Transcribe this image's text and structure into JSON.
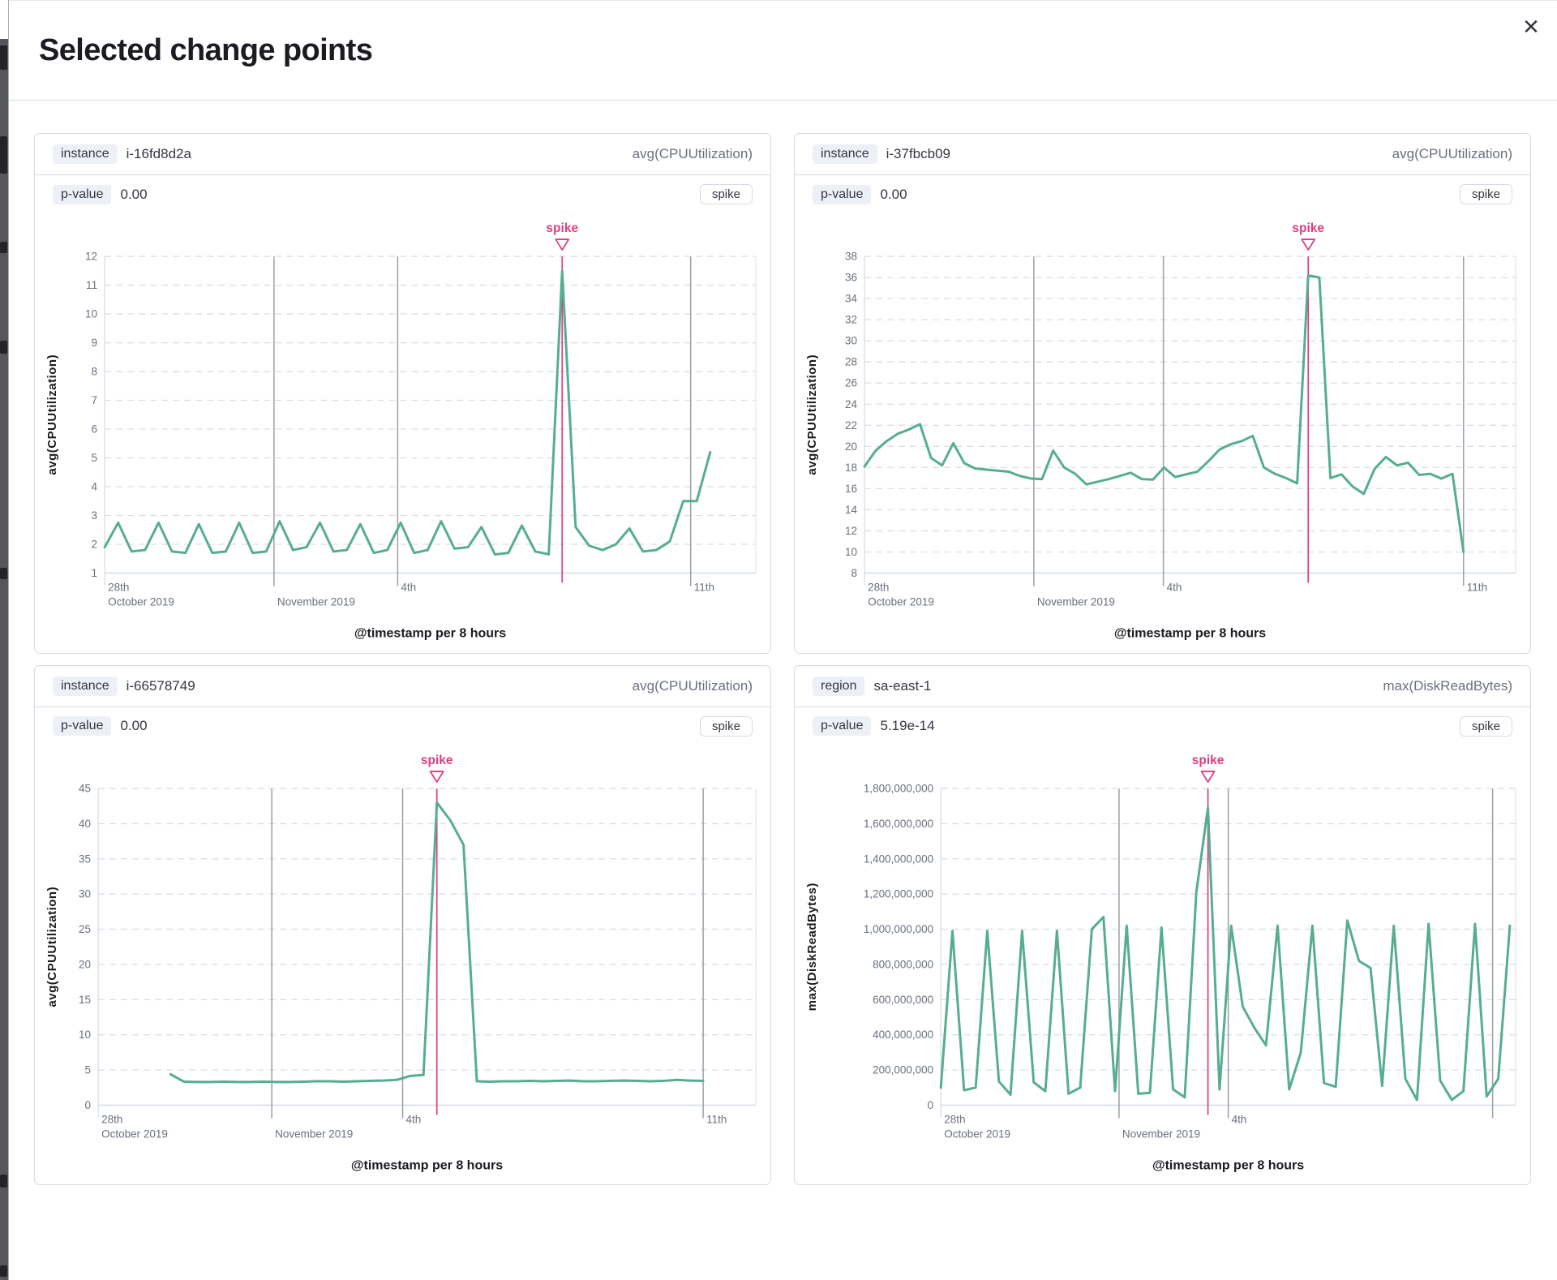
{
  "modal": {
    "title": "Selected change points",
    "close_icon": "✕"
  },
  "cards": [
    {
      "field_label": "instance",
      "field_value": "i-16fd8d2a",
      "metric": "avg(CPUUtilization)",
      "p_label": "p-value",
      "p_value": "0.00",
      "change_type": "spike"
    },
    {
      "field_label": "instance",
      "field_value": "i-37fbcb09",
      "metric": "avg(CPUUtilization)",
      "p_label": "p-value",
      "p_value": "0.00",
      "change_type": "spike"
    },
    {
      "field_label": "instance",
      "field_value": "i-66578749",
      "metric": "avg(CPUUtilization)",
      "p_label": "p-value",
      "p_value": "0.00",
      "change_type": "spike"
    },
    {
      "field_label": "region",
      "field_value": "sa-east-1",
      "metric": "max(DiskReadBytes)",
      "p_label": "p-value",
      "p_value": "5.19e-14",
      "change_type": "spike"
    }
  ],
  "colors": {
    "series_line": "#57ad92",
    "annotation": "#dc3d82",
    "grid_dashed": "#d9dee8",
    "grid_dark": "#9aa0a6",
    "axis": "#d3dae6",
    "tick_label": "#69707d",
    "axis_title": "#1a1c21"
  },
  "chart_data": [
    {
      "type": "line",
      "ylabel": "avg(CPUUtilization)",
      "xlabel": "@timestamp per 8 hours",
      "annotation_label": "spike",
      "ylim": [
        1,
        12
      ],
      "ytick_step": 1,
      "comma_ticks": false,
      "x_ticks": [
        {
          "f": 0.0,
          "lines": [
            "28th",
            "October 2019"
          ]
        },
        {
          "f": 0.26,
          "lines": [
            "",
            "November 2019"
          ]
        },
        {
          "f": 0.45,
          "lines": [
            "4th"
          ]
        },
        {
          "f": 0.9,
          "lines": [
            "11th"
          ]
        }
      ],
      "grid_verticals": [
        0.26,
        0.45,
        0.9
      ],
      "x_start": 0.0,
      "x_end": 0.93,
      "values": [
        1.9,
        2.75,
        1.75,
        1.8,
        2.75,
        1.75,
        1.7,
        2.7,
        1.7,
        1.75,
        2.75,
        1.7,
        1.75,
        2.8,
        1.8,
        1.9,
        2.75,
        1.75,
        1.8,
        2.7,
        1.7,
        1.8,
        2.75,
        1.7,
        1.8,
        2.8,
        1.85,
        1.9,
        2.6,
        1.65,
        1.7,
        2.65,
        1.75,
        1.65,
        11.5,
        2.6,
        1.95,
        1.8,
        2.0,
        2.55,
        1.75,
        1.8,
        2.1,
        3.5,
        3.5,
        5.2
      ]
    },
    {
      "type": "line",
      "ylabel": "avg(CPUUtilization)",
      "xlabel": "@timestamp per 8 hours",
      "annotation_label": "spike",
      "ylim": [
        8,
        38
      ],
      "ytick_step": 2,
      "comma_ticks": false,
      "x_ticks": [
        {
          "f": 0.0,
          "lines": [
            "28th",
            "October 2019"
          ]
        },
        {
          "f": 0.26,
          "lines": [
            "",
            "November 2019"
          ]
        },
        {
          "f": 0.459,
          "lines": [
            "4th"
          ]
        },
        {
          "f": 0.92,
          "lines": [
            "11th"
          ]
        }
      ],
      "grid_verticals": [
        0.26,
        0.459,
        0.92
      ],
      "x_start": 0.0,
      "x_end": 0.92,
      "values": [
        18.1,
        19.6,
        20.5,
        21.2,
        21.6,
        22.1,
        18.9,
        18.2,
        20.3,
        18.4,
        17.9,
        17.8,
        17.7,
        17.6,
        17.2,
        16.95,
        16.9,
        19.6,
        18.0,
        17.4,
        16.4,
        16.65,
        16.9,
        17.2,
        17.5,
        16.9,
        16.85,
        18.0,
        17.1,
        17.35,
        17.6,
        18.6,
        19.7,
        20.2,
        20.5,
        21.0,
        18.0,
        17.4,
        17.0,
        16.5,
        36.2,
        36.0,
        17.0,
        17.35,
        16.2,
        15.5,
        17.9,
        19.0,
        18.2,
        18.45,
        17.3,
        17.4,
        16.95,
        17.4,
        10.0
      ]
    },
    {
      "type": "line",
      "ylabel": "avg(CPUUtilization)",
      "xlabel": "@timestamp per 8 hours",
      "annotation_label": "spike",
      "ylim": [
        0,
        45
      ],
      "ytick_step": 5,
      "comma_ticks": false,
      "x_ticks": [
        {
          "f": 0.0,
          "lines": [
            "28th",
            "October 2019"
          ]
        },
        {
          "f": 0.264,
          "lines": [
            "",
            "November 2019"
          ]
        },
        {
          "f": 0.463,
          "lines": [
            "4th"
          ]
        },
        {
          "f": 0.92,
          "lines": [
            "11th"
          ]
        }
      ],
      "grid_verticals": [
        0.264,
        0.463,
        0.92
      ],
      "x_start": 0.11,
      "x_end": 0.92,
      "values": [
        4.4,
        3.35,
        3.3,
        3.3,
        3.35,
        3.3,
        3.3,
        3.35,
        3.3,
        3.3,
        3.35,
        3.4,
        3.4,
        3.35,
        3.4,
        3.45,
        3.5,
        3.6,
        4.15,
        4.3,
        43,
        40.5,
        37,
        3.4,
        3.35,
        3.4,
        3.4,
        3.45,
        3.4,
        3.45,
        3.5,
        3.4,
        3.4,
        3.45,
        3.5,
        3.45,
        3.4,
        3.45,
        3.6,
        3.5,
        3.45
      ]
    },
    {
      "type": "line",
      "ylabel": "max(DiskReadBytes)",
      "xlabel": "@timestamp per 8 hours",
      "annotation_label": "spike",
      "ylim": [
        0,
        1800000000
      ],
      "ytick_step": 200000000,
      "comma_ticks": true,
      "x_ticks": [
        {
          "f": 0.0,
          "lines": [
            "28th",
            "October 2019"
          ]
        },
        {
          "f": 0.31,
          "lines": [
            "",
            "November 2019"
          ]
        },
        {
          "f": 0.5,
          "lines": [
            "4th"
          ]
        }
      ],
      "grid_verticals": [
        0.31,
        0.5,
        0.96
      ],
      "x_start": 0.0,
      "x_end": 0.99,
      "values": [
        100000000.0,
        990000000.0,
        85000000.0,
        100000000.0,
        990000000.0,
        135000000.0,
        60000000.0,
        990000000.0,
        130000000.0,
        80000000.0,
        990000000.0,
        65000000.0,
        100000000.0,
        1000000000.0,
        1070000000.0,
        80000000.0,
        1020000000.0,
        65000000.0,
        70000000.0,
        1010000000.0,
        90000000.0,
        45000000.0,
        1210000000.0,
        1690000000.0,
        90000000.0,
        1020000000.0,
        560000000.0,
        440000000.0,
        340000000.0,
        1020000000.0,
        90000000.0,
        300000000.0,
        1020000000.0,
        125000000.0,
        105000000.0,
        1050000000.0,
        820000000.0,
        780000000.0,
        110000000.0,
        1020000000.0,
        150000000.0,
        30000000.0,
        1030000000.0,
        140000000.0,
        30000000.0,
        80000000.0,
        1030000000.0,
        50000000.0,
        150000000.0,
        1020000000.0
      ]
    }
  ]
}
